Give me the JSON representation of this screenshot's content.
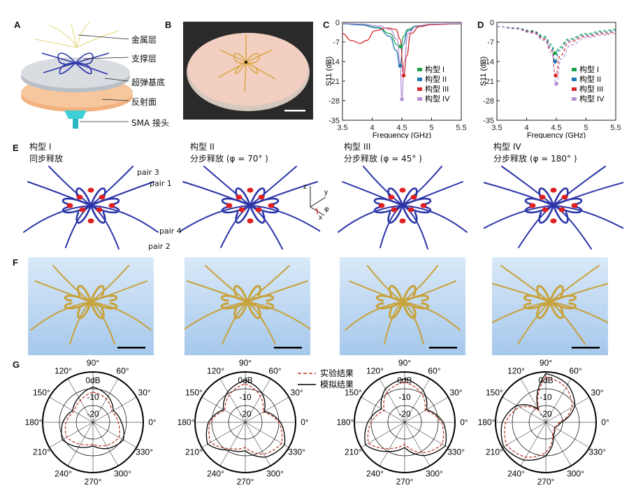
{
  "panel_labels": {
    "A": "A",
    "B": "B",
    "C": "C",
    "D": "D",
    "E": "E",
    "F": "F",
    "G": "G"
  },
  "panelA": {
    "callouts": [
      "金属层",
      "支撑层",
      "超弹基底",
      "反射面",
      "SMA 接头"
    ]
  },
  "colors": {
    "config1": "#1aa34a",
    "config2": "#1f77b4",
    "config3": "#d62728",
    "config4": "#b58fd6",
    "ribbon": "#2b35a8",
    "bead": "#e02020",
    "photo_ribbon": "#c8a23a",
    "exp_line": "#c0392b",
    "sim_line": "#000000"
  },
  "chart_data": [
    {
      "id": "C",
      "type": "line",
      "xlabel": "Frequency (GHz)",
      "ylabel": "S11 (dB)",
      "xlim": [
        3.5,
        5.5
      ],
      "ylim": [
        -35,
        0
      ],
      "xticks": [
        "3.5",
        "4",
        "4.5",
        "5",
        "5.5"
      ],
      "yticks": [
        "0",
        "-7",
        "-14",
        "-21",
        "-28",
        "-35"
      ],
      "legend": [
        "构型 I",
        "构型 II",
        "构型 III",
        "构型 IV"
      ],
      "legend_position": "right",
      "series": [
        {
          "name": "构型 I",
          "style": "solid",
          "x": [
            3.5,
            3.8,
            4.1,
            4.3,
            4.42,
            4.48,
            4.53,
            4.6,
            4.75,
            5.0,
            5.5
          ],
          "y": [
            -0.5,
            -0.8,
            -1.8,
            -4,
            -8,
            -8.6,
            -5,
            -2.5,
            -1.2,
            -0.7,
            -0.5
          ]
        },
        {
          "name": "构型 II",
          "style": "solid",
          "x": [
            3.5,
            3.8,
            4.1,
            4.3,
            4.4,
            4.47,
            4.52,
            4.6,
            4.75,
            5.0,
            5.5
          ],
          "y": [
            -0.5,
            -0.9,
            -2,
            -5,
            -10,
            -15.5,
            -8,
            -3,
            -1.5,
            -0.8,
            -0.5
          ]
        },
        {
          "name": "构型 III",
          "style": "solid",
          "x": [
            3.5,
            3.65,
            3.8,
            3.9,
            4.05,
            4.25,
            4.4,
            4.47,
            4.53,
            4.58,
            4.65,
            4.8,
            5.0,
            5.5
          ],
          "y": [
            -4,
            -6.5,
            -7.5,
            -6.5,
            -3,
            -2,
            -2.5,
            -6,
            -19,
            -12,
            -4,
            -1.5,
            -0.8,
            -0.5
          ]
        },
        {
          "name": "构型 IV",
          "style": "solid",
          "x": [
            3.5,
            3.8,
            4.1,
            4.3,
            4.42,
            4.47,
            4.5,
            4.54,
            4.6,
            4.75,
            5.0,
            5.5
          ],
          "y": [
            -0.4,
            -0.6,
            -1.2,
            -2.5,
            -6,
            -15,
            -27.5,
            -14,
            -4,
            -1.2,
            -0.6,
            -0.4
          ]
        }
      ],
      "markers": [
        {
          "series": "构型 I",
          "x": 4.48,
          "y": -8.6
        },
        {
          "series": "构型 II",
          "x": 4.47,
          "y": -15.5
        },
        {
          "series": "构型 III",
          "x": 4.53,
          "y": -19
        },
        {
          "series": "构型 IV",
          "x": 4.5,
          "y": -27.5
        }
      ]
    },
    {
      "id": "D",
      "type": "line",
      "xlabel": "Frequency (GHz)",
      "ylabel": "S11 (dB)",
      "xlim": [
        3.5,
        5.5
      ],
      "ylim": [
        -35,
        0
      ],
      "xticks": [
        "3.5",
        "4",
        "4.5",
        "5",
        "5.5"
      ],
      "yticks": [
        "0",
        "-7",
        "-14",
        "-21",
        "-28",
        "-35"
      ],
      "legend": [
        "构型 I",
        "构型 II",
        "构型 III",
        "构型 IV"
      ],
      "legend_position": "right",
      "series": [
        {
          "name": "构型 I",
          "style": "dashed",
          "x": [
            3.5,
            3.8,
            4.1,
            4.3,
            4.42,
            4.48,
            4.55,
            4.7,
            5.0,
            5.3,
            5.5
          ],
          "y": [
            -1.5,
            -2,
            -3,
            -5,
            -8,
            -11,
            -9,
            -6,
            -4,
            -3,
            -2.5
          ]
        },
        {
          "name": "构型 II",
          "style": "dashed",
          "x": [
            3.5,
            3.8,
            4.1,
            4.3,
            4.42,
            4.48,
            4.55,
            4.7,
            5.0,
            5.3,
            5.5
          ],
          "y": [
            -1.5,
            -2,
            -3.2,
            -5.5,
            -9,
            -14,
            -10,
            -6.5,
            -4.5,
            -3.5,
            -3
          ]
        },
        {
          "name": "构型 III",
          "style": "dashed",
          "x": [
            3.5,
            3.8,
            4.1,
            4.3,
            4.42,
            4.49,
            4.56,
            4.72,
            5.0,
            5.3,
            5.5
          ],
          "y": [
            -1.5,
            -2.2,
            -3.5,
            -6,
            -10,
            -19,
            -12,
            -7,
            -5,
            -4,
            -3.5
          ]
        },
        {
          "name": "构型 IV",
          "style": "dashed",
          "x": [
            3.5,
            3.8,
            4.1,
            4.3,
            4.42,
            4.5,
            4.58,
            4.75,
            5.0,
            5.3,
            5.5
          ],
          "y": [
            -1.5,
            -2.3,
            -3.8,
            -6.5,
            -11,
            -22,
            -13,
            -8,
            -5.5,
            -4.5,
            -4
          ]
        }
      ],
      "markers": [
        {
          "series": "构型 I",
          "x": 4.48,
          "y": -11
        },
        {
          "series": "构型 II",
          "x": 4.48,
          "y": -14
        },
        {
          "series": "构型 III",
          "x": 4.49,
          "y": -19
        },
        {
          "series": "构型 IV",
          "x": 4.5,
          "y": -22
        }
      ]
    },
    {
      "id": "G",
      "type": "polar",
      "radial_ticks": [
        "0dB",
        "-10",
        "-20"
      ],
      "radial_range": [
        -30,
        0
      ],
      "angle_ticks": [
        "90°",
        "60°",
        "30°",
        "0°",
        "330°",
        "300°",
        "270°",
        "240°",
        "210°",
        "180°",
        "150°",
        "120°"
      ],
      "legend": [
        "实验结果",
        "模拟结果"
      ],
      "plots": [
        {
          "name": "构型 I",
          "exp": [
            -12,
            -14,
            -17,
            -15,
            -12,
            -14,
            -17,
            -15,
            -12,
            -14,
            -17,
            -15
          ],
          "sim": [
            -9,
            -12,
            -16,
            -13,
            -9,
            -12,
            -16,
            -13,
            -9,
            -12,
            -16,
            -13
          ]
        },
        {
          "name": "构型 II",
          "exp": [
            -7,
            -12,
            -18,
            -10,
            -5,
            -8,
            -15,
            -12,
            -6,
            -9,
            -16,
            -11
          ],
          "sim": [
            -5,
            -10,
            -17,
            -9,
            -3,
            -6,
            -13,
            -11,
            -4,
            -8,
            -15,
            -9
          ]
        },
        {
          "name": "构型 III",
          "exp": [
            -6,
            -10,
            -16,
            -8,
            -4,
            -9,
            -17,
            -12,
            -5,
            -10,
            -16,
            -9
          ],
          "sim": [
            -4,
            -8,
            -15,
            -7,
            -2,
            -7,
            -15,
            -10,
            -3,
            -8,
            -14,
            -7
          ]
        },
        {
          "name": "构型 IV",
          "exp": [
            -3,
            -6,
            -12,
            -22,
            -24,
            -22,
            -12,
            -6,
            -3,
            -6,
            -12,
            -22
          ],
          "sim": [
            -1,
            -4,
            -10,
            -21,
            -24,
            -21,
            -10,
            -4,
            -1,
            -4,
            -10,
            -21
          ]
        }
      ]
    }
  ],
  "panelE": {
    "configs": [
      {
        "title": "构型 I",
        "subtitle": "同步释放"
      },
      {
        "title": "构型 II",
        "subtitle": "分步释放 (φ = 70° )"
      },
      {
        "title": "构型 III",
        "subtitle": "分步释放 (φ = 45° )"
      },
      {
        "title": "构型 IV",
        "subtitle": "分步释放 (φ = 180° )"
      }
    ],
    "pair_labels": [
      "pair 3",
      "pair 1",
      "pair 4",
      "pair 2"
    ],
    "axes_labels": {
      "z": "z",
      "y": "y",
      "x": "x",
      "phi": "φ"
    }
  }
}
